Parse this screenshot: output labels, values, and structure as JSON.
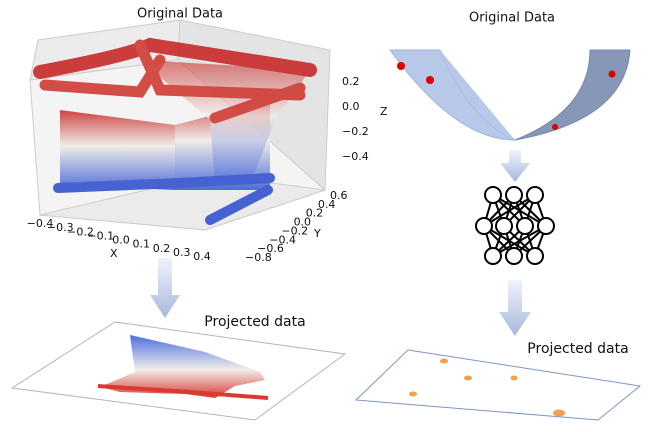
{
  "left": {
    "title": "Original Data",
    "axes": {
      "x_label": "X",
      "y_label": "Y",
      "z_label": "Z",
      "x_ticks": [
        "−0.4",
        "−0.3",
        "−0.2",
        "−0.1",
        "0.0",
        "0.1",
        "0.2",
        "0.3",
        "0.4"
      ],
      "y_ticks": [
        "0.6",
        "0.4",
        "0.2",
        "0.0",
        "−0.2",
        "−0.4",
        "−0.6",
        "−0.8"
      ],
      "z_ticks": [
        "0.2",
        "0.0",
        "−0.2",
        "−0.4"
      ]
    },
    "projection_title": "Projected data"
  },
  "right": {
    "title": "Original Data",
    "projection_title": "Projected data"
  }
}
